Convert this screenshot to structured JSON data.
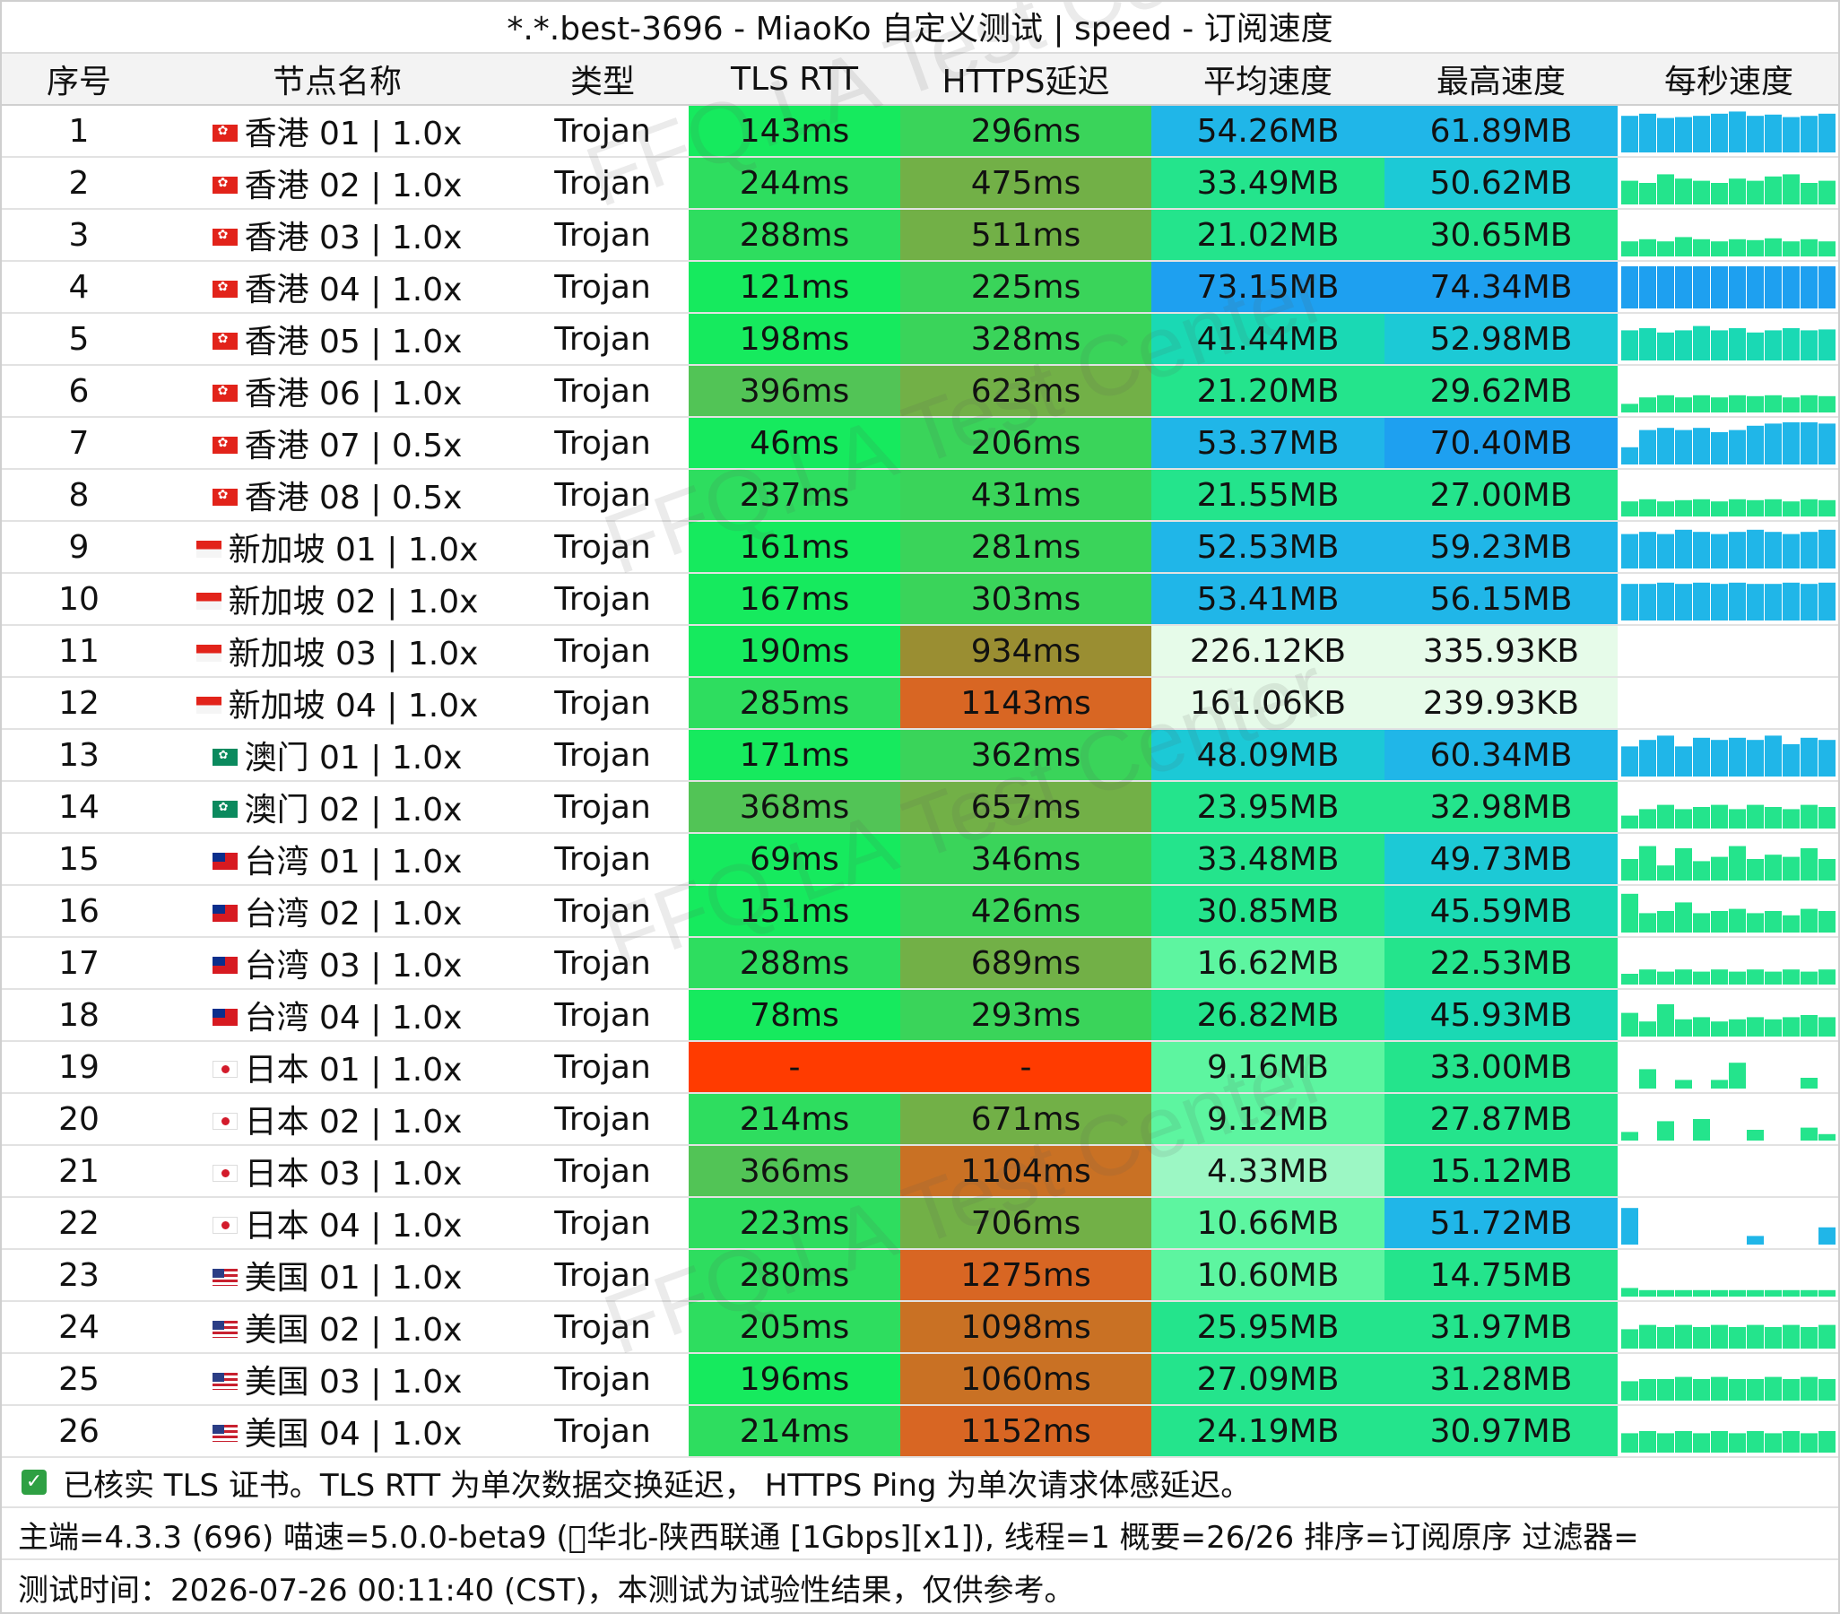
{
  "title": "*.*.best-3696 - MiaoKo 自定义测试 | speed - 订阅速度",
  "columns": [
    "序号",
    "节点名称",
    "类型",
    "TLS RTT",
    "HTTPS延迟",
    "平均速度",
    "最高速度",
    "每秒速度"
  ],
  "colors": {
    "tls_fast": "#16ea5e",
    "tls_mid": "#2edd5f",
    "tls_slow": "#52c456",
    "tls_fail": "#ff3b00",
    "https_fast": "#3ad45a",
    "https_mid": "#72b047",
    "https_slow1": "#9a8e32",
    "https_slow2": "#c97124",
    "https_slow3": "#d86623",
    "https_fail": "#ff3b00",
    "speed_very_high": "#1ea0f0",
    "speed_high": "#20b6e8",
    "speed_mid_high": "#1cc9d6",
    "speed_mid": "#1ad9b4",
    "speed_mid_low": "#24e48c",
    "speed_low": "#5df5a0",
    "speed_very_low": "#9cf7c4",
    "speed_kb": "#e6fbe9"
  },
  "rows": [
    {
      "idx": "1",
      "flag": "hk",
      "name": "香港 01 | 1.0x",
      "type": "Trojan",
      "tls": "143ms",
      "tls_c": "tls_fast",
      "https": "296ms",
      "https_c": "https_fast",
      "avg": "54.26MB",
      "avg_c": "speed_high",
      "max": "61.89MB",
      "max_c": "speed_high",
      "bars": [
        0.85,
        0.9,
        0.8,
        0.82,
        0.85,
        0.9,
        0.95,
        0.85,
        0.88,
        0.82,
        0.85,
        0.9
      ],
      "bar_c": "speed_high"
    },
    {
      "idx": "2",
      "flag": "hk",
      "name": "香港 02 | 1.0x",
      "type": "Trojan",
      "tls": "244ms",
      "tls_c": "tls_mid",
      "https": "475ms",
      "https_c": "https_mid",
      "avg": "33.49MB",
      "avg_c": "speed_mid_low",
      "max": "50.62MB",
      "max_c": "speed_mid_high",
      "bars": [
        0.55,
        0.5,
        0.7,
        0.6,
        0.55,
        0.5,
        0.6,
        0.55,
        0.65,
        0.7,
        0.5,
        0.55
      ],
      "bar_c": "speed_mid_low"
    },
    {
      "idx": "3",
      "flag": "hk",
      "name": "香港 03 | 1.0x",
      "type": "Trojan",
      "tls": "288ms",
      "tls_c": "tls_mid",
      "https": "511ms",
      "https_c": "https_mid",
      "avg": "21.02MB",
      "avg_c": "speed_mid_low",
      "max": "30.65MB",
      "max_c": "speed_mid_low",
      "bars": [
        0.35,
        0.4,
        0.35,
        0.45,
        0.4,
        0.35,
        0.4,
        0.38,
        0.42,
        0.35,
        0.4,
        0.35
      ],
      "bar_c": "speed_mid_low"
    },
    {
      "idx": "4",
      "flag": "hk",
      "name": "香港 04 | 1.0x",
      "type": "Trojan",
      "tls": "121ms",
      "tls_c": "tls_fast",
      "https": "225ms",
      "https_c": "https_fast",
      "avg": "73.15MB",
      "avg_c": "speed_very_high",
      "max": "74.34MB",
      "max_c": "speed_very_high",
      "bars": [
        0.98,
        0.98,
        0.98,
        0.98,
        0.98,
        0.98,
        0.98,
        0.98,
        0.98,
        0.98,
        0.98,
        0.98
      ],
      "bar_c": "speed_very_high"
    },
    {
      "idx": "5",
      "flag": "hk",
      "name": "香港 05 | 1.0x",
      "type": "Trojan",
      "tls": "198ms",
      "tls_c": "tls_fast",
      "https": "328ms",
      "https_c": "https_fast",
      "avg": "41.44MB",
      "avg_c": "speed_mid",
      "max": "52.98MB",
      "max_c": "speed_mid_high",
      "bars": [
        0.7,
        0.75,
        0.65,
        0.7,
        0.8,
        0.7,
        0.75,
        0.65,
        0.7,
        0.75,
        0.7,
        0.72
      ],
      "bar_c": "speed_mid"
    },
    {
      "idx": "6",
      "flag": "hk",
      "name": "香港 06 | 1.0x",
      "type": "Trojan",
      "tls": "396ms",
      "tls_c": "tls_slow",
      "https": "623ms",
      "https_c": "https_mid",
      "avg": "21.20MB",
      "avg_c": "speed_mid_low",
      "max": "29.62MB",
      "max_c": "speed_mid_low",
      "bars": [
        0.2,
        0.35,
        0.4,
        0.35,
        0.4,
        0.35,
        0.4,
        0.38,
        0.4,
        0.35,
        0.4,
        0.38
      ],
      "bar_c": "speed_mid_low"
    },
    {
      "idx": "7",
      "flag": "hk",
      "name": "香港 07 | 0.5x",
      "type": "Trojan",
      "tls": "46ms",
      "tls_c": "tls_fast",
      "https": "206ms",
      "https_c": "https_fast",
      "avg": "53.37MB",
      "avg_c": "speed_high",
      "max": "70.40MB",
      "max_c": "speed_very_high",
      "bars": [
        0.4,
        0.8,
        0.85,
        0.8,
        0.85,
        0.75,
        0.8,
        0.9,
        0.95,
        0.98,
        0.98,
        0.95
      ],
      "bar_c": "speed_high"
    },
    {
      "idx": "8",
      "flag": "hk",
      "name": "香港 08 | 0.5x",
      "type": "Trojan",
      "tls": "237ms",
      "tls_c": "tls_mid",
      "https": "431ms",
      "https_c": "https_fast",
      "avg": "21.55MB",
      "avg_c": "speed_mid_low",
      "max": "27.00MB",
      "max_c": "speed_mid_low",
      "bars": [
        0.35,
        0.4,
        0.35,
        0.38,
        0.4,
        0.35,
        0.4,
        0.38,
        0.4,
        0.35,
        0.4,
        0.38
      ],
      "bar_c": "speed_mid_low"
    },
    {
      "idx": "9",
      "flag": "sg",
      "name": "新加坡 01 | 1.0x",
      "type": "Trojan",
      "tls": "161ms",
      "tls_c": "tls_fast",
      "https": "281ms",
      "https_c": "https_fast",
      "avg": "52.53MB",
      "avg_c": "speed_high",
      "max": "59.23MB",
      "max_c": "speed_high",
      "bars": [
        0.8,
        0.85,
        0.8,
        0.9,
        0.85,
        0.8,
        0.85,
        0.9,
        0.85,
        0.8,
        0.85,
        0.9
      ],
      "bar_c": "speed_high"
    },
    {
      "idx": "10",
      "flag": "sg",
      "name": "新加坡 02 | 1.0x",
      "type": "Trojan",
      "tls": "167ms",
      "tls_c": "tls_fast",
      "https": "303ms",
      "https_c": "https_fast",
      "avg": "53.41MB",
      "avg_c": "speed_high",
      "max": "56.15MB",
      "max_c": "speed_high",
      "bars": [
        0.85,
        0.85,
        0.88,
        0.85,
        0.88,
        0.85,
        0.88,
        0.85,
        0.85,
        0.88,
        0.85,
        0.88
      ],
      "bar_c": "speed_high"
    },
    {
      "idx": "11",
      "flag": "sg",
      "name": "新加坡 03 | 1.0x",
      "type": "Trojan",
      "tls": "190ms",
      "tls_c": "tls_fast",
      "https": "934ms",
      "https_c": "https_slow1",
      "avg": "226.12KB",
      "avg_c": "speed_kb",
      "max": "335.93KB",
      "max_c": "speed_kb",
      "bars": [],
      "bar_c": "speed_kb"
    },
    {
      "idx": "12",
      "flag": "sg",
      "name": "新加坡 04 | 1.0x",
      "type": "Trojan",
      "tls": "285ms",
      "tls_c": "tls_mid",
      "https": "1143ms",
      "https_c": "https_slow3",
      "avg": "161.06KB",
      "avg_c": "speed_kb",
      "max": "239.93KB",
      "max_c": "speed_kb",
      "bars": [],
      "bar_c": "speed_kb"
    },
    {
      "idx": "13",
      "flag": "mo",
      "name": "澳门 01 | 1.0x",
      "type": "Trojan",
      "tls": "171ms",
      "tls_c": "tls_fast",
      "https": "362ms",
      "https_c": "https_fast",
      "avg": "48.09MB",
      "avg_c": "speed_mid_high",
      "max": "60.34MB",
      "max_c": "speed_high",
      "bars": [
        0.7,
        0.85,
        0.95,
        0.7,
        0.9,
        0.85,
        0.9,
        0.85,
        0.95,
        0.75,
        0.9,
        0.85
      ],
      "bar_c": "speed_high"
    },
    {
      "idx": "14",
      "flag": "mo",
      "name": "澳门 02 | 1.0x",
      "type": "Trojan",
      "tls": "368ms",
      "tls_c": "tls_slow",
      "https": "657ms",
      "https_c": "https_mid",
      "avg": "23.95MB",
      "avg_c": "speed_mid_low",
      "max": "32.98MB",
      "max_c": "speed_mid_low",
      "bars": [
        0.3,
        0.45,
        0.55,
        0.45,
        0.5,
        0.55,
        0.45,
        0.55,
        0.5,
        0.45,
        0.55,
        0.5
      ],
      "bar_c": "speed_mid_low"
    },
    {
      "idx": "15",
      "flag": "tw",
      "name": "台湾 01 | 1.0x",
      "type": "Trojan",
      "tls": "69ms",
      "tls_c": "tls_fast",
      "https": "346ms",
      "https_c": "https_fast",
      "avg": "33.48MB",
      "avg_c": "speed_mid_low",
      "max": "49.73MB",
      "max_c": "speed_mid_high",
      "bars": [
        0.5,
        0.8,
        0.35,
        0.75,
        0.45,
        0.55,
        0.8,
        0.5,
        0.6,
        0.55,
        0.75,
        0.5
      ],
      "bar_c": "speed_mid_low"
    },
    {
      "idx": "16",
      "flag": "tw",
      "name": "台湾 02 | 1.0x",
      "type": "Trojan",
      "tls": "151ms",
      "tls_c": "tls_fast",
      "https": "426ms",
      "https_c": "https_fast",
      "avg": "30.85MB",
      "avg_c": "speed_mid_low",
      "max": "45.59MB",
      "max_c": "speed_mid",
      "bars": [
        0.9,
        0.45,
        0.5,
        0.7,
        0.45,
        0.5,
        0.55,
        0.45,
        0.5,
        0.4,
        0.55,
        0.5
      ],
      "bar_c": "speed_mid_low"
    },
    {
      "idx": "17",
      "flag": "tw",
      "name": "台湾 03 | 1.0x",
      "type": "Trojan",
      "tls": "288ms",
      "tls_c": "tls_mid",
      "https": "689ms",
      "https_c": "https_mid",
      "avg": "16.62MB",
      "avg_c": "speed_low",
      "max": "22.53MB",
      "max_c": "speed_mid_low",
      "bars": [
        0.25,
        0.35,
        0.3,
        0.35,
        0.3,
        0.35,
        0.3,
        0.35,
        0.3,
        0.35,
        0.3,
        0.35
      ],
      "bar_c": "speed_mid_low"
    },
    {
      "idx": "18",
      "flag": "tw",
      "name": "台湾 04 | 1.0x",
      "type": "Trojan",
      "tls": "78ms",
      "tls_c": "tls_fast",
      "https": "293ms",
      "https_c": "https_fast",
      "avg": "26.82MB",
      "avg_c": "speed_mid_low",
      "max": "45.93MB",
      "max_c": "speed_mid",
      "bars": [
        0.55,
        0.35,
        0.75,
        0.4,
        0.45,
        0.35,
        0.4,
        0.45,
        0.4,
        0.45,
        0.5,
        0.45
      ],
      "bar_c": "speed_mid_low"
    },
    {
      "idx": "19",
      "flag": "jp",
      "name": "日本 01 | 1.0x",
      "type": "Trojan",
      "tls": "-",
      "tls_c": "tls_fail",
      "https": "-",
      "https_c": "https_fail",
      "avg": "9.16MB",
      "avg_c": "speed_low",
      "max": "33.00MB",
      "max_c": "speed_mid_low",
      "bars": [
        0,
        0.45,
        0,
        0.2,
        0,
        0.2,
        0.6,
        0,
        0,
        0,
        0.25,
        0
      ],
      "bar_c": "speed_mid_low"
    },
    {
      "idx": "20",
      "flag": "jp",
      "name": "日本 02 | 1.0x",
      "type": "Trojan",
      "tls": "214ms",
      "tls_c": "tls_mid",
      "https": "671ms",
      "https_c": "https_mid",
      "avg": "9.12MB",
      "avg_c": "speed_low",
      "max": "27.87MB",
      "max_c": "speed_mid_low",
      "bars": [
        0.2,
        0,
        0.45,
        0,
        0.5,
        0,
        0,
        0.25,
        0,
        0,
        0.3,
        0.15
      ],
      "bar_c": "speed_mid_low"
    },
    {
      "idx": "21",
      "flag": "jp",
      "name": "日本 03 | 1.0x",
      "type": "Trojan",
      "tls": "366ms",
      "tls_c": "tls_slow",
      "https": "1104ms",
      "https_c": "https_slow2",
      "avg": "4.33MB",
      "avg_c": "speed_very_low",
      "max": "15.12MB",
      "max_c": "speed_mid_low",
      "bars": [
        0,
        0,
        0,
        0,
        0,
        0,
        0,
        0,
        0,
        0,
        0,
        0
      ],
      "bar_c": "speed_mid_low"
    },
    {
      "idx": "22",
      "flag": "jp",
      "name": "日本 04 | 1.0x",
      "type": "Trojan",
      "tls": "223ms",
      "tls_c": "tls_mid",
      "https": "706ms",
      "https_c": "https_mid",
      "avg": "10.66MB",
      "avg_c": "speed_low",
      "max": "51.72MB",
      "max_c": "speed_high",
      "bars": [
        0.85,
        0,
        0,
        0,
        0,
        0,
        0,
        0.2,
        0,
        0,
        0,
        0.4
      ],
      "bar_c": "speed_high"
    },
    {
      "idx": "23",
      "flag": "us",
      "name": "美国 01 | 1.0x",
      "type": "Trojan",
      "tls": "280ms",
      "tls_c": "tls_mid",
      "https": "1275ms",
      "https_c": "https_slow3",
      "avg": "10.60MB",
      "avg_c": "speed_low",
      "max": "14.75MB",
      "max_c": "speed_mid_low",
      "bars": [
        0.2,
        0.15,
        0.15,
        0.15,
        0.15,
        0.15,
        0.15,
        0.15,
        0.15,
        0.15,
        0.15,
        0.15
      ],
      "bar_c": "speed_mid_low"
    },
    {
      "idx": "24",
      "flag": "us",
      "name": "美国 02 | 1.0x",
      "type": "Trojan",
      "tls": "205ms",
      "tls_c": "tls_mid",
      "https": "1098ms",
      "https_c": "https_slow2",
      "avg": "25.95MB",
      "avg_c": "speed_mid_low",
      "max": "31.97MB",
      "max_c": "speed_mid_low",
      "bars": [
        0.45,
        0.55,
        0.5,
        0.55,
        0.5,
        0.55,
        0.5,
        0.55,
        0.5,
        0.55,
        0.5,
        0.55
      ],
      "bar_c": "speed_mid_low"
    },
    {
      "idx": "25",
      "flag": "us",
      "name": "美国 03 | 1.0x",
      "type": "Trojan",
      "tls": "196ms",
      "tls_c": "tls_fast",
      "https": "1060ms",
      "https_c": "https_slow2",
      "avg": "27.09MB",
      "avg_c": "speed_mid_low",
      "max": "31.28MB",
      "max_c": "speed_mid_low",
      "bars": [
        0.45,
        0.5,
        0.5,
        0.55,
        0.5,
        0.55,
        0.5,
        0.5,
        0.55,
        0.5,
        0.55,
        0.5
      ],
      "bar_c": "speed_mid_low"
    },
    {
      "idx": "26",
      "flag": "us",
      "name": "美国 04 | 1.0x",
      "type": "Trojan",
      "tls": "214ms",
      "tls_c": "tls_mid",
      "https": "1152ms",
      "https_c": "https_slow3",
      "avg": "24.19MB",
      "avg_c": "speed_mid_low",
      "max": "30.97MB",
      "max_c": "speed_mid_low",
      "bars": [
        0.45,
        0.5,
        0.45,
        0.5,
        0.45,
        0.5,
        0.45,
        0.5,
        0.45,
        0.5,
        0.45,
        0.5
      ],
      "bar_c": "speed_mid_low"
    }
  ],
  "footer": {
    "line1": "已核实 TLS 证书。TLS RTT 为单次数据交换延迟， HTTPS Ping 为单次请求体感延迟。",
    "line2": "主端=4.3.3 (696) 喵速=5.0.0-beta9 (\u0000华北-陕西联通 [1Gbps][x1]), 线程=1 概要=26/26 排序=订阅原序 过滤器=",
    "line3": "测试时间：2026-07-26 00:11:40 (CST)，本测试为试验性结果，仅供参考。"
  },
  "watermark": "FFQ.LA Test Center"
}
